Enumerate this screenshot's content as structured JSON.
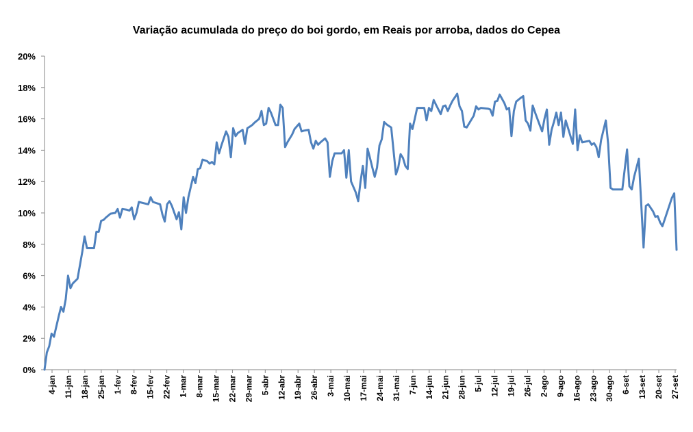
{
  "chart_data": {
    "type": "line",
    "title": "Variação acumulada do preço do boi gordo, em Reais por arroba, dados do Cepea",
    "xlabel": "",
    "ylabel": "",
    "ylim": [
      0,
      20
    ],
    "y_ticks": [
      "0%",
      "2%",
      "4%",
      "6%",
      "8%",
      "10%",
      "12%",
      "14%",
      "16%",
      "18%",
      "20%"
    ],
    "x_ticks": [
      "4-jan",
      "11-jan",
      "18-jan",
      "25-jan",
      "1-fev",
      "8-fev",
      "15-fev",
      "22-fev",
      "1-mar",
      "8-mar",
      "15-mar",
      "22-mar",
      "29-mar",
      "5-abr",
      "12-abr",
      "19-abr",
      "26-abr",
      "3-mai",
      "10-mai",
      "17-mai",
      "24-mai",
      "31-mai",
      "7-jun",
      "14-jun",
      "21-jun",
      "28-jun",
      "5-jul",
      "12-jul",
      "19-jul",
      "26-jul",
      "2-ago",
      "9-ago",
      "16-ago",
      "23-ago",
      "30-ago",
      "6-set",
      "13-set",
      "20-set",
      "27-set"
    ],
    "grid": false,
    "legend": "none",
    "line_color": "#4f81bd",
    "series": [
      {
        "points": [
          [
            0,
            0.0
          ],
          [
            1,
            1.1
          ],
          [
            2,
            1.5
          ],
          [
            3,
            2.3
          ],
          [
            4,
            2.1
          ],
          [
            6,
            3.4
          ],
          [
            7,
            4.0
          ],
          [
            8,
            3.7
          ],
          [
            9,
            4.5
          ],
          [
            10,
            6.0
          ],
          [
            11,
            5.2
          ],
          [
            12,
            5.5
          ],
          [
            14,
            5.8
          ],
          [
            16,
            7.5
          ],
          [
            17,
            8.5
          ],
          [
            18,
            7.75
          ],
          [
            21,
            7.75
          ],
          [
            22,
            8.8
          ],
          [
            23,
            8.8
          ],
          [
            24,
            9.5
          ],
          [
            25,
            9.55
          ],
          [
            26,
            9.7
          ],
          [
            28,
            9.95
          ],
          [
            30,
            10.0
          ],
          [
            31,
            10.25
          ],
          [
            32,
            9.7
          ],
          [
            33,
            10.25
          ],
          [
            35,
            10.2
          ],
          [
            36,
            10.15
          ],
          [
            37,
            10.35
          ],
          [
            38,
            9.6
          ],
          [
            39,
            10.0
          ],
          [
            40,
            10.7
          ],
          [
            44,
            10.55
          ],
          [
            45,
            11.0
          ],
          [
            46,
            10.7
          ],
          [
            49,
            10.55
          ],
          [
            50,
            9.9
          ],
          [
            51,
            9.45
          ],
          [
            52,
            10.55
          ],
          [
            53,
            10.75
          ],
          [
            54,
            10.45
          ],
          [
            56,
            9.6
          ],
          [
            57,
            10.05
          ],
          [
            58,
            8.95
          ],
          [
            59,
            11.0
          ],
          [
            60,
            10.0
          ],
          [
            61,
            11.0
          ],
          [
            63,
            12.3
          ],
          [
            64,
            11.9
          ],
          [
            65,
            12.8
          ],
          [
            66,
            12.85
          ],
          [
            67,
            13.4
          ],
          [
            69,
            13.3
          ],
          [
            70,
            13.15
          ],
          [
            71,
            13.25
          ],
          [
            72,
            13.1
          ],
          [
            73,
            14.5
          ],
          [
            74,
            13.8
          ],
          [
            75,
            14.3
          ],
          [
            77,
            15.2
          ],
          [
            78,
            14.85
          ],
          [
            79,
            13.55
          ],
          [
            80,
            15.4
          ],
          [
            81,
            14.9
          ],
          [
            82,
            15.1
          ],
          [
            84,
            15.3
          ],
          [
            85,
            14.4
          ],
          [
            86,
            15.4
          ],
          [
            87,
            15.5
          ],
          [
            88,
            15.6
          ],
          [
            89,
            15.75
          ],
          [
            91,
            16.0
          ],
          [
            92,
            16.5
          ],
          [
            93,
            15.6
          ],
          [
            94,
            15.7
          ],
          [
            95,
            16.7
          ],
          [
            96,
            16.4
          ],
          [
            98,
            15.6
          ],
          [
            99,
            15.6
          ],
          [
            100,
            16.9
          ],
          [
            101,
            16.7
          ],
          [
            102,
            14.2
          ],
          [
            103,
            14.5
          ],
          [
            105,
            15.0
          ],
          [
            106,
            15.35
          ],
          [
            108,
            15.7
          ],
          [
            109,
            15.2
          ],
          [
            110,
            15.25
          ],
          [
            112,
            15.3
          ],
          [
            113,
            14.5
          ],
          [
            114,
            14.1
          ],
          [
            115,
            14.6
          ],
          [
            116,
            14.35
          ],
          [
            117,
            14.5
          ],
          [
            119,
            14.75
          ],
          [
            120,
            14.5
          ],
          [
            121,
            12.3
          ],
          [
            122,
            13.3
          ],
          [
            123,
            13.8
          ],
          [
            126,
            13.8
          ],
          [
            127,
            14.0
          ],
          [
            128,
            12.25
          ],
          [
            129,
            14.0
          ],
          [
            130,
            12.0
          ],
          [
            132,
            11.3
          ],
          [
            133,
            10.75
          ],
          [
            134,
            12.0
          ],
          [
            135,
            13.0
          ],
          [
            136,
            11.6
          ],
          [
            137,
            14.1
          ],
          [
            138,
            13.5
          ],
          [
            139,
            12.9
          ],
          [
            140,
            12.3
          ],
          [
            141,
            12.9
          ],
          [
            142,
            14.3
          ],
          [
            143,
            14.7
          ],
          [
            144,
            15.8
          ],
          [
            145,
            15.65
          ],
          [
            147,
            15.45
          ],
          [
            149,
            12.45
          ],
          [
            150,
            12.9
          ],
          [
            151,
            13.75
          ],
          [
            152,
            13.5
          ],
          [
            153,
            13.0
          ],
          [
            154,
            12.8
          ],
          [
            155,
            15.7
          ],
          [
            156,
            15.35
          ],
          [
            157,
            16.0
          ],
          [
            158,
            16.7
          ],
          [
            161,
            16.7
          ],
          [
            162,
            15.9
          ],
          [
            163,
            16.7
          ],
          [
            164,
            16.5
          ],
          [
            165,
            17.2
          ],
          [
            166,
            16.9
          ],
          [
            168,
            16.3
          ],
          [
            169,
            16.8
          ],
          [
            170,
            16.85
          ],
          [
            171,
            16.5
          ],
          [
            172,
            16.85
          ],
          [
            173,
            17.15
          ],
          [
            175,
            17.6
          ],
          [
            176,
            16.8
          ],
          [
            177,
            16.5
          ],
          [
            178,
            15.5
          ],
          [
            179,
            15.45
          ],
          [
            180,
            15.7
          ],
          [
            182,
            16.2
          ],
          [
            183,
            16.8
          ],
          [
            184,
            16.6
          ],
          [
            185,
            16.7
          ],
          [
            188,
            16.65
          ],
          [
            189,
            16.6
          ],
          [
            190,
            16.2
          ],
          [
            191,
            17.1
          ],
          [
            192,
            17.15
          ],
          [
            193,
            17.55
          ],
          [
            195,
            17.0
          ],
          [
            196,
            16.6
          ],
          [
            197,
            16.7
          ],
          [
            198,
            14.9
          ],
          [
            199,
            16.5
          ],
          [
            200,
            17.1
          ],
          [
            202,
            17.35
          ],
          [
            203,
            17.45
          ],
          [
            204,
            15.9
          ],
          [
            205,
            15.7
          ],
          [
            206,
            15.25
          ],
          [
            207,
            16.85
          ],
          [
            208,
            16.4
          ],
          [
            210,
            15.6
          ],
          [
            211,
            15.2
          ],
          [
            212,
            16.0
          ],
          [
            213,
            16.6
          ],
          [
            214,
            14.35
          ],
          [
            215,
            15.3
          ],
          [
            216,
            15.8
          ],
          [
            217,
            16.4
          ],
          [
            218,
            15.6
          ],
          [
            219,
            16.4
          ],
          [
            220,
            14.85
          ],
          [
            221,
            15.9
          ],
          [
            222,
            15.4
          ],
          [
            224,
            14.4
          ],
          [
            225,
            16.6
          ],
          [
            226,
            14.0
          ],
          [
            227,
            14.95
          ],
          [
            228,
            14.5
          ],
          [
            231,
            14.6
          ],
          [
            232,
            14.35
          ],
          [
            233,
            14.45
          ],
          [
            234,
            14.2
          ],
          [
            235,
            13.55
          ],
          [
            236,
            14.65
          ],
          [
            238,
            15.9
          ],
          [
            239,
            14.4
          ],
          [
            240,
            11.6
          ],
          [
            241,
            11.5
          ],
          [
            245,
            11.5
          ],
          [
            247,
            14.05
          ],
          [
            248,
            11.7
          ],
          [
            249,
            11.5
          ],
          [
            250,
            12.3
          ],
          [
            252,
            13.45
          ],
          [
            254,
            7.8
          ],
          [
            255,
            10.45
          ],
          [
            256,
            10.55
          ],
          [
            258,
            10.1
          ],
          [
            259,
            9.75
          ],
          [
            260,
            9.8
          ],
          [
            261,
            9.4
          ],
          [
            262,
            9.15
          ],
          [
            263,
            9.6
          ],
          [
            266,
            10.95
          ],
          [
            267,
            11.25
          ],
          [
            268,
            7.65
          ]
        ]
      }
    ]
  }
}
